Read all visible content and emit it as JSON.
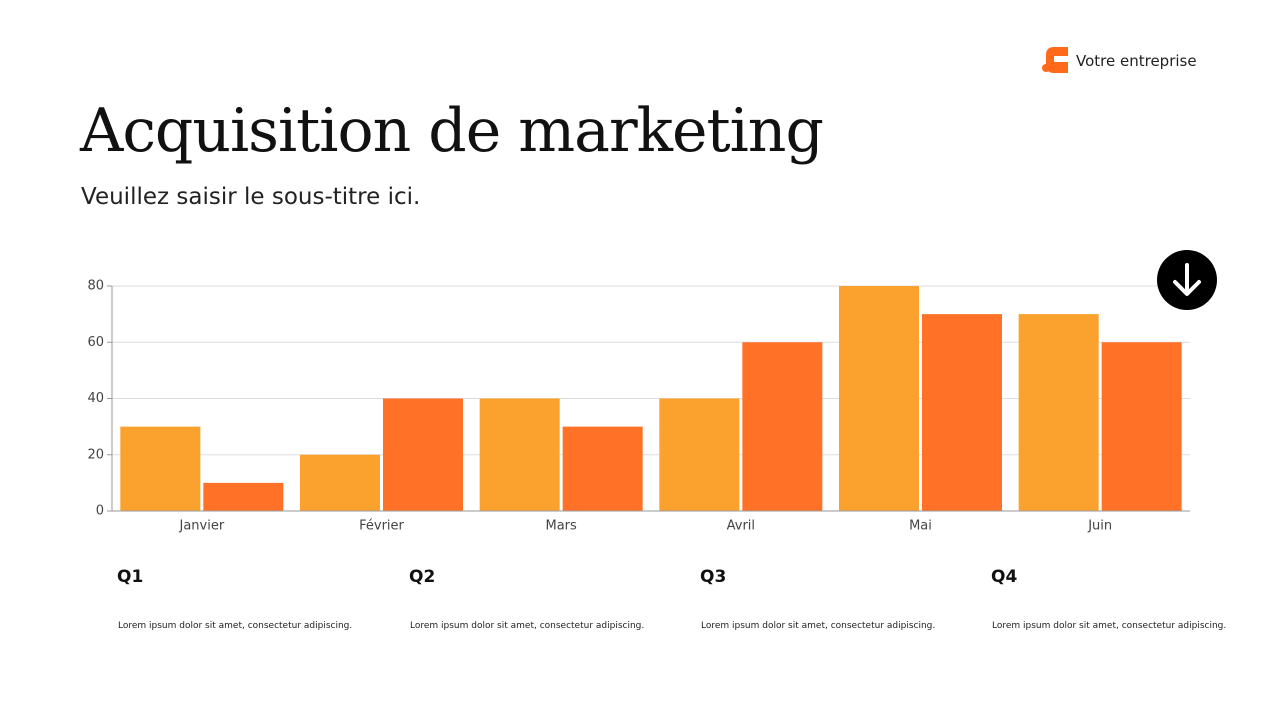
{
  "header": {
    "brand": "Votre entreprise"
  },
  "title": "Acquisition de marketing",
  "subtitle": "Veuillez saisir le sous-titre ici.",
  "chart_data": {
    "type": "bar",
    "categories": [
      "Janvier",
      "Février",
      "Mars",
      "Avril",
      "Mai",
      "Juin"
    ],
    "series": [
      {
        "color": "#fba12d",
        "values": [
          30,
          20,
          40,
          40,
          80,
          70
        ]
      },
      {
        "color": "#ff7126",
        "values": [
          10,
          40,
          30,
          60,
          70,
          60
        ]
      }
    ],
    "ylim": [
      0,
      80
    ],
    "yticks": [
      0,
      20,
      40,
      60,
      80
    ],
    "grid": true
  },
  "quarters": [
    {
      "label": "Q1",
      "text": "Lorem ipsum dolor sit amet, consectetur adipiscing."
    },
    {
      "label": "Q2",
      "text": "Lorem ipsum dolor sit amet, consectetur adipiscing."
    },
    {
      "label": "Q3",
      "text": "Lorem ipsum dolor sit amet, consectetur adipiscing."
    },
    {
      "label": "Q4",
      "text": "Lorem ipsum dolor sit amet, consectetur adipiscing."
    }
  ]
}
